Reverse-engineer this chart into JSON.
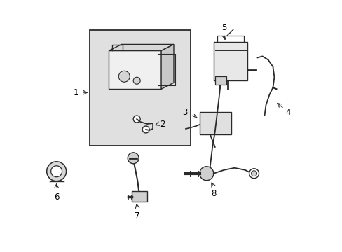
{
  "background_color": "#ffffff",
  "line_color": "#2a2a2a",
  "text_color": "#000000",
  "box_bg": "#e8e8e8",
  "figure_width": 4.89,
  "figure_height": 3.6,
  "dpi": 100
}
